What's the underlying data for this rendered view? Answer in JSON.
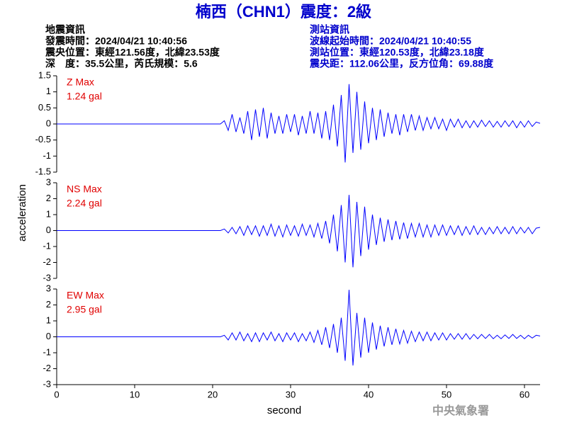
{
  "header": {
    "title": "楠西（CHN1）震度：2級",
    "left": [
      "地震資訊",
      "發震時間：2024/04/21 10:40:56",
      "震央位置：東經121.56度，北緯23.53度",
      "深　度：35.5公里，芮氏規模：5.6"
    ],
    "right": [
      "測站資訊",
      "波線起始時間：2024/04/21 10:40:55",
      "測站位置：東經120.53度，北緯23.18度",
      "震央距：112.06公里，反方位角：69.88度"
    ],
    "watermark": "中央氣象署"
  },
  "chart_data": [
    {
      "type": "line",
      "annotations": [
        "Z Max",
        "1.24 gal"
      ],
      "color": "#0000ff",
      "xlim": [
        0,
        62
      ],
      "ylim": [
        -1.5,
        1.5
      ],
      "yticks": [
        -1.5,
        -1,
        -0.5,
        0,
        0.5,
        1,
        1.5
      ],
      "x": [
        0,
        21,
        21.5,
        22,
        22.5,
        23,
        23.5,
        24,
        24.5,
        25,
        25.5,
        26,
        26.5,
        27,
        27.5,
        28,
        28.5,
        29,
        29.5,
        30,
        30.5,
        31,
        31.5,
        32,
        32.5,
        33,
        33.5,
        34,
        34.5,
        35,
        35.5,
        36,
        36.5,
        37,
        37.5,
        38,
        38.5,
        39,
        39.5,
        40,
        40.5,
        41,
        41.5,
        42,
        42.5,
        43,
        43.5,
        44,
        44.5,
        45,
        45.5,
        46,
        46.5,
        47,
        47.5,
        48,
        48.5,
        49,
        49.5,
        50,
        50.5,
        51,
        51.5,
        52,
        52.5,
        53,
        53.5,
        54,
        54.5,
        55,
        55.5,
        56,
        56.5,
        57,
        57.5,
        58,
        58.5,
        59,
        59.5,
        60,
        60.5,
        61,
        61.5,
        62
      ],
      "values": [
        0,
        0,
        0.1,
        -0.2,
        0.3,
        -0.25,
        0.2,
        -0.3,
        0.4,
        -0.5,
        0.45,
        -0.4,
        0.5,
        -0.45,
        0.35,
        -0.3,
        0.25,
        -0.3,
        0.3,
        -0.25,
        0.3,
        -0.35,
        0.25,
        -0.3,
        0.4,
        -0.3,
        0.35,
        -0.45,
        0.4,
        -0.5,
        0.6,
        -0.7,
        0.9,
        -1.2,
        1.24,
        -0.9,
        1.0,
        -0.8,
        0.7,
        -0.6,
        0.5,
        -0.5,
        0.45,
        -0.4,
        0.35,
        -0.3,
        0.3,
        -0.35,
        0.3,
        -0.25,
        0.3,
        -0.2,
        0.25,
        -0.2,
        0.2,
        -0.15,
        0.2,
        -0.15,
        0.15,
        -0.2,
        0.15,
        -0.1,
        0.15,
        -0.12,
        0.1,
        -0.12,
        0.1,
        -0.1,
        0.12,
        -0.08,
        0.1,
        -0.1,
        0.08,
        -0.1,
        0.1,
        -0.08,
        0.1,
        -0.12,
        0.08,
        -0.1,
        0.1,
        -0.08,
        0.06,
        0.02
      ]
    },
    {
      "type": "line",
      "annotations": [
        "NS Max",
        "2.24 gal"
      ],
      "color": "#0000ff",
      "y_label": "acceleration",
      "xlim": [
        0,
        62
      ],
      "ylim": [
        -3,
        3
      ],
      "yticks": [
        -3,
        -2,
        -1,
        0,
        1,
        2,
        3
      ],
      "x": [
        0,
        21,
        21.5,
        22,
        22.5,
        23,
        23.5,
        24,
        24.5,
        25,
        25.5,
        26,
        26.5,
        27,
        27.5,
        28,
        28.5,
        29,
        29.5,
        30,
        30.5,
        31,
        31.5,
        32,
        32.5,
        33,
        33.5,
        34,
        34.5,
        35,
        35.5,
        36,
        36.5,
        37,
        37.5,
        38,
        38.5,
        39,
        39.5,
        40,
        40.5,
        41,
        41.5,
        42,
        42.5,
        43,
        43.5,
        44,
        44.5,
        45,
        45.5,
        46,
        46.5,
        47,
        47.5,
        48,
        48.5,
        49,
        49.5,
        50,
        50.5,
        51,
        51.5,
        52,
        52.5,
        53,
        53.5,
        54,
        54.5,
        55,
        55.5,
        56,
        56.5,
        57,
        57.5,
        58,
        58.5,
        59,
        59.5,
        60,
        60.5,
        61,
        61.5,
        62
      ],
      "values": [
        0,
        0,
        0.1,
        -0.15,
        0.2,
        -0.2,
        0.25,
        -0.3,
        0.3,
        -0.25,
        0.3,
        -0.35,
        0.3,
        -0.3,
        0.4,
        -0.35,
        0.3,
        -0.4,
        0.35,
        -0.3,
        0.3,
        -0.35,
        0.4,
        -0.3,
        0.35,
        -0.4,
        0.45,
        -0.5,
        0.6,
        -0.8,
        1.0,
        -1.3,
        1.6,
        -2.0,
        2.24,
        -2.3,
        1.8,
        -1.6,
        1.5,
        -1.2,
        1.0,
        -0.9,
        0.8,
        -0.7,
        0.7,
        -0.6,
        0.6,
        -0.55,
        0.5,
        -0.5,
        0.45,
        -0.4,
        0.45,
        -0.4,
        0.35,
        -0.4,
        0.35,
        -0.3,
        0.35,
        -0.3,
        0.3,
        -0.25,
        0.3,
        -0.3,
        0.25,
        -0.25,
        0.3,
        -0.25,
        0.2,
        -0.25,
        0.2,
        -0.2,
        0.25,
        -0.2,
        0.2,
        -0.2,
        0.25,
        -0.2,
        0.2,
        -0.15,
        0.2,
        -0.2,
        0.15,
        0.2
      ]
    },
    {
      "type": "line",
      "annotations": [
        "EW Max",
        "2.95 gal"
      ],
      "color": "#0000ff",
      "x_label": "second",
      "xlim": [
        0,
        62
      ],
      "xticks": [
        0,
        10,
        20,
        30,
        40,
        50,
        60
      ],
      "ylim": [
        -3,
        3
      ],
      "yticks": [
        -3,
        -2,
        -1,
        0,
        1,
        2,
        3
      ],
      "x": [
        0,
        21,
        21.5,
        22,
        22.5,
        23,
        23.5,
        24,
        24.5,
        25,
        25.5,
        26,
        26.5,
        27,
        27.5,
        28,
        28.5,
        29,
        29.5,
        30,
        30.5,
        31,
        31.5,
        32,
        32.5,
        33,
        33.5,
        34,
        34.5,
        35,
        35.5,
        36,
        36.5,
        37,
        37.5,
        38,
        38.5,
        39,
        39.5,
        40,
        40.5,
        41,
        41.5,
        42,
        42.5,
        43,
        43.5,
        44,
        44.5,
        45,
        45.5,
        46,
        46.5,
        47,
        47.5,
        48,
        48.5,
        49,
        49.5,
        50,
        50.5,
        51,
        51.5,
        52,
        52.5,
        53,
        53.5,
        54,
        54.5,
        55,
        55.5,
        56,
        56.5,
        57,
        57.5,
        58,
        58.5,
        59,
        59.5,
        60,
        60.5,
        61,
        61.5,
        62
      ],
      "values": [
        0,
        0,
        0.1,
        -0.2,
        0.25,
        -0.2,
        0.3,
        -0.25,
        0.2,
        -0.3,
        0.25,
        -0.3,
        0.25,
        -0.2,
        0.3,
        -0.25,
        0.2,
        -0.3,
        0.25,
        -0.2,
        0.25,
        -0.3,
        0.2,
        -0.25,
        0.3,
        -0.35,
        0.4,
        -0.5,
        0.6,
        -0.7,
        0.8,
        -1.0,
        1.2,
        -1.5,
        2.95,
        -1.8,
        1.5,
        -1.3,
        1.2,
        -1.0,
        0.9,
        -0.8,
        0.7,
        -0.6,
        0.6,
        -0.5,
        0.5,
        -0.45,
        0.4,
        -0.4,
        0.35,
        -0.3,
        0.3,
        -0.25,
        0.3,
        -0.25,
        0.25,
        -0.2,
        0.25,
        -0.2,
        0.2,
        -0.15,
        0.2,
        -0.15,
        0.2,
        -0.15,
        0.15,
        -0.12,
        0.15,
        -0.1,
        0.15,
        -0.12,
        0.1,
        -0.12,
        0.12,
        -0.1,
        0.15,
        -0.1,
        0.1,
        -0.12,
        0.1,
        -0.08,
        0.1,
        0.05
      ]
    }
  ]
}
